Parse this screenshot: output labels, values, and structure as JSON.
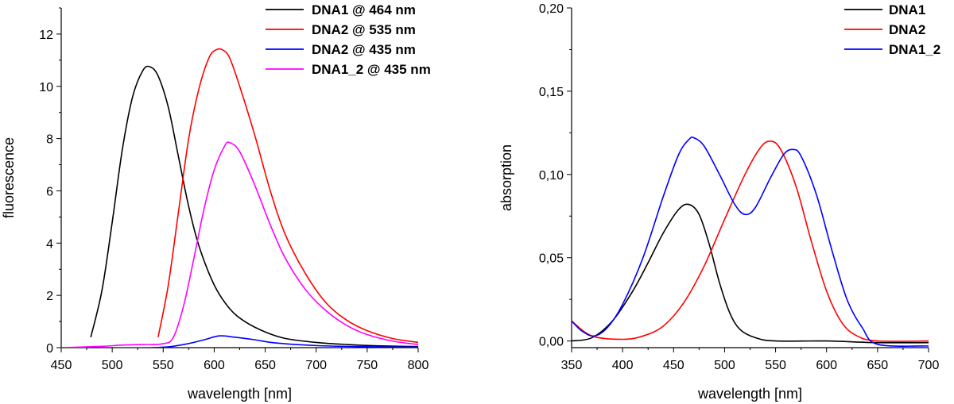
{
  "chart_data": [
    {
      "type": "line",
      "xlabel": "wavelength [nm]",
      "ylabel": "fluorescence",
      "xlim": [
        450,
        800
      ],
      "ylim": [
        0,
        13
      ],
      "xticks": [
        450,
        500,
        550,
        600,
        650,
        700,
        750,
        800
      ],
      "yticks": [
        0,
        2,
        4,
        6,
        8,
        10,
        12
      ],
      "legend_position": "top-right",
      "series": [
        {
          "name": "DNA1 @ 464 nm",
          "color": "#000000",
          "x": [
            479,
            490,
            500,
            510,
            520,
            530,
            537,
            545,
            555,
            565,
            575,
            585,
            600,
            615,
            630,
            650,
            670,
            700,
            730,
            760,
            800
          ],
          "y": [
            0.4,
            2.2,
            4.8,
            7.6,
            9.6,
            10.6,
            10.75,
            10.4,
            9.2,
            7.3,
            5.4,
            3.9,
            2.4,
            1.5,
            1.0,
            0.6,
            0.35,
            0.2,
            0.12,
            0.07,
            0.04
          ]
        },
        {
          "name": "DNA2 @ 535 nm",
          "color": "#ff0000",
          "x": [
            545,
            555,
            565,
            575,
            585,
            595,
            602,
            608,
            615,
            625,
            640,
            655,
            670,
            690,
            710,
            730,
            750,
            775,
            800
          ],
          "y": [
            0.4,
            2.4,
            5.2,
            8.0,
            9.9,
            11.1,
            11.4,
            11.4,
            11.1,
            10.0,
            8.1,
            6.0,
            4.3,
            2.8,
            1.7,
            1.05,
            0.65,
            0.35,
            0.2
          ]
        },
        {
          "name": "DNA2 @ 435 nm",
          "color": "#0000ff",
          "x": [
            450,
            540,
            570,
            590,
            605,
            620,
            640,
            660,
            700,
            740,
            800
          ],
          "y": [
            0.0,
            0.0,
            0.12,
            0.3,
            0.45,
            0.4,
            0.3,
            0.18,
            0.08,
            0.04,
            0.02
          ]
        },
        {
          "name": "DNA1_2 @ 435 nm",
          "color": "#ff00ff",
          "x": [
            450,
            490,
            510,
            530,
            550,
            560,
            570,
            580,
            590,
            600,
            610,
            615,
            625,
            640,
            655,
            670,
            690,
            710,
            730,
            750,
            775,
            800
          ],
          "y": [
            0.0,
            0.05,
            0.1,
            0.12,
            0.15,
            0.4,
            1.6,
            3.4,
            5.3,
            6.8,
            7.7,
            7.85,
            7.5,
            6.2,
            4.7,
            3.4,
            2.2,
            1.4,
            0.85,
            0.5,
            0.25,
            0.12
          ]
        }
      ]
    },
    {
      "type": "line",
      "xlabel": "wavelength [nm]",
      "ylabel": "absorption",
      "xlim": [
        350,
        700
      ],
      "ylim": [
        -0.004,
        0.2
      ],
      "xticks": [
        350,
        400,
        450,
        500,
        550,
        600,
        650,
        700
      ],
      "yticks": [
        0.0,
        0.05,
        0.1,
        0.15,
        0.2
      ],
      "ytick_labels": [
        "0,00",
        "0,05",
        "0,10",
        "0,15",
        "0,20"
      ],
      "legend_position": "top-right",
      "series": [
        {
          "name": "DNA1",
          "color": "#000000",
          "x": [
            350,
            370,
            390,
            410,
            425,
            440,
            455,
            465,
            475,
            485,
            495,
            505,
            515,
            530,
            550,
            600,
            650,
            700
          ],
          "y": [
            0.0,
            0.002,
            0.012,
            0.03,
            0.047,
            0.065,
            0.079,
            0.082,
            0.076,
            0.058,
            0.035,
            0.017,
            0.007,
            0.002,
            0.0,
            0.0,
            -0.001,
            -0.001
          ]
        },
        {
          "name": "DNA2",
          "color": "#ff0000",
          "x": [
            350,
            370,
            400,
            420,
            440,
            460,
            480,
            500,
            520,
            535,
            545,
            555,
            570,
            585,
            600,
            615,
            630,
            650,
            700
          ],
          "y": [
            0.012,
            0.003,
            0.001,
            0.003,
            0.009,
            0.023,
            0.045,
            0.073,
            0.1,
            0.116,
            0.12,
            0.115,
            0.093,
            0.06,
            0.03,
            0.011,
            0.003,
            0.0,
            0.0
          ]
        },
        {
          "name": "DNA1_2",
          "color": "#0000ff",
          "x": [
            350,
            360,
            372,
            385,
            400,
            420,
            440,
            455,
            465,
            470,
            480,
            495,
            510,
            520,
            530,
            545,
            558,
            567,
            575,
            590,
            605,
            620,
            635,
            650,
            700
          ],
          "y": [
            0.012,
            0.006,
            0.003,
            0.008,
            0.022,
            0.05,
            0.087,
            0.112,
            0.121,
            0.122,
            0.117,
            0.1,
            0.082,
            0.076,
            0.08,
            0.098,
            0.112,
            0.115,
            0.111,
            0.088,
            0.055,
            0.025,
            0.008,
            -0.002,
            -0.003
          ]
        }
      ]
    }
  ]
}
